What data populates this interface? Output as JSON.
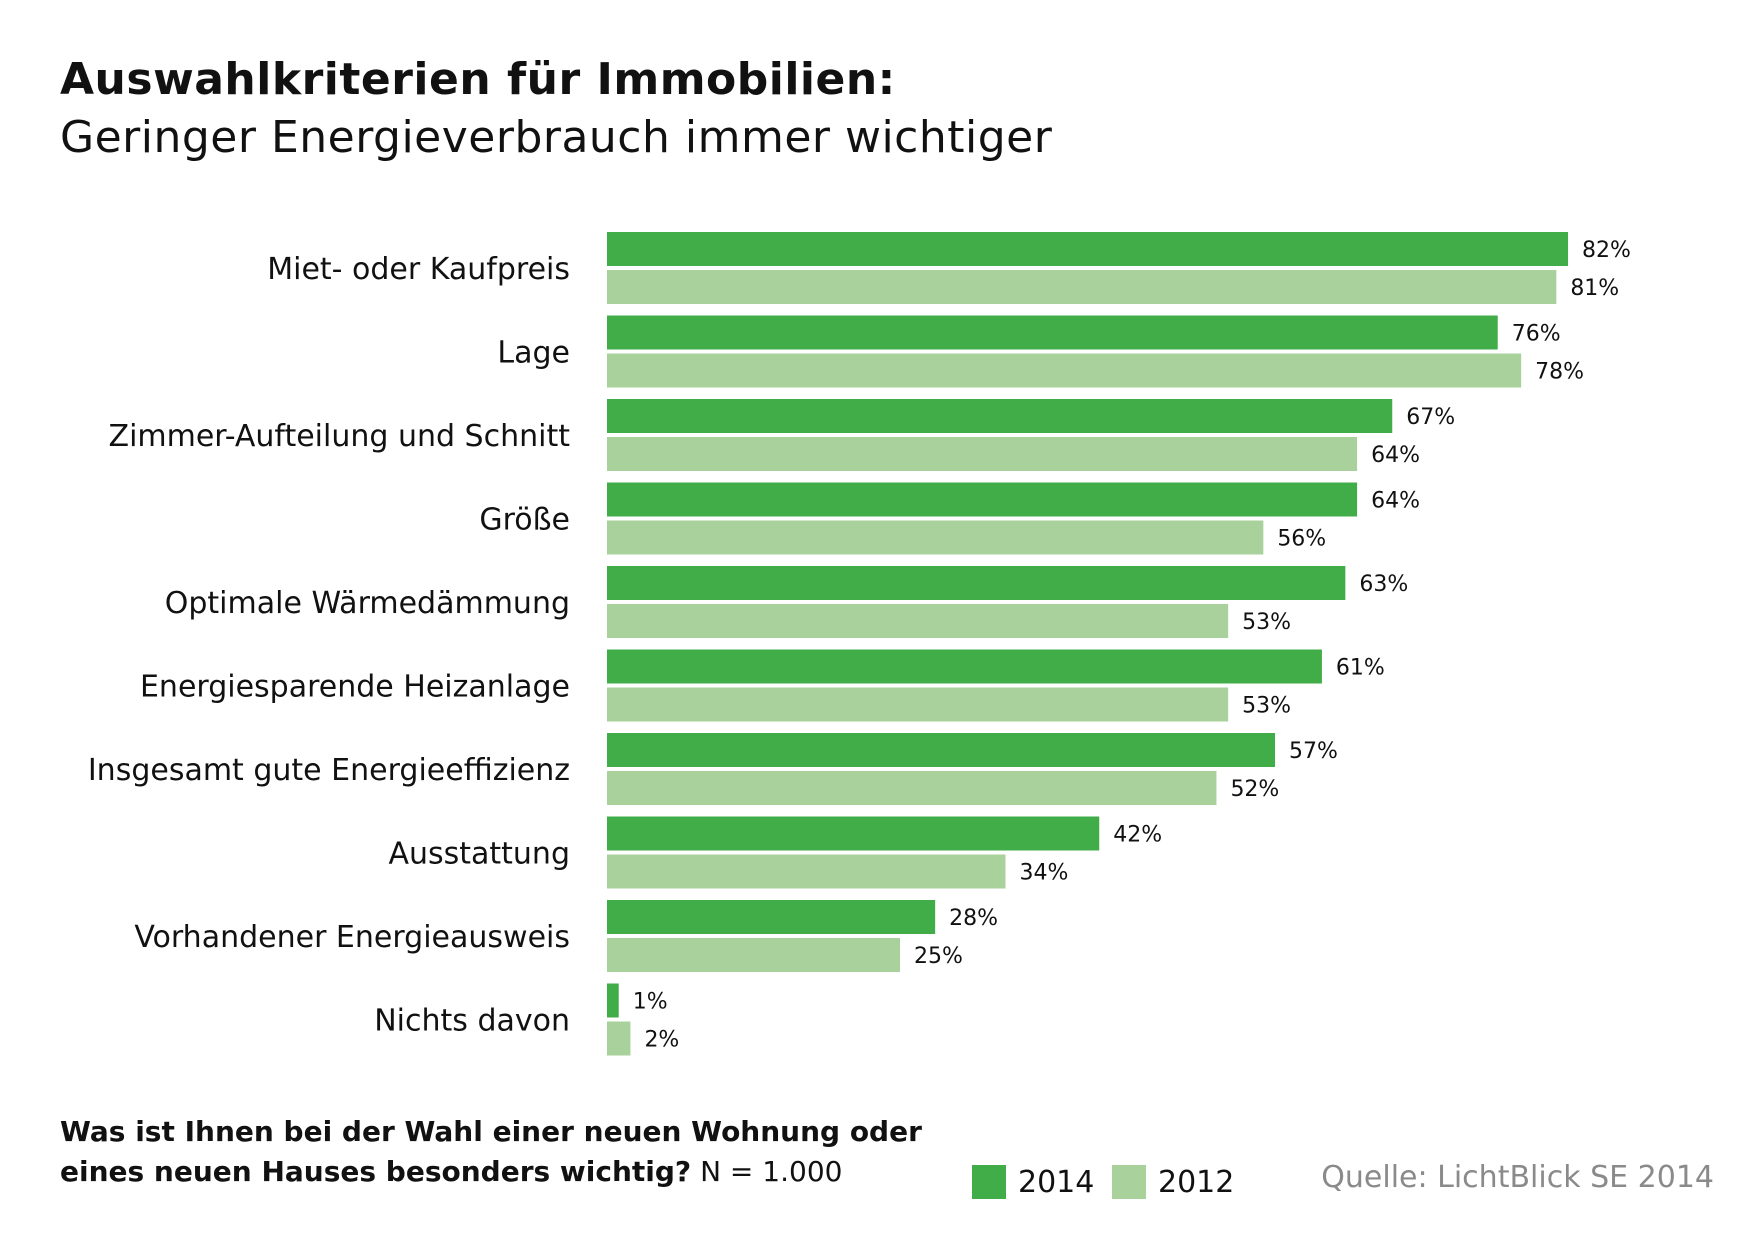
{
  "header": {
    "title": "Auswahlkriterien für Immobilien:",
    "subtitle": "Geringer Energieverbrauch immer wichtiger"
  },
  "footer": {
    "question_bold_line1": "Was ist Ihnen bei der Wahl einer neuen Wohnung oder",
    "question_bold_line2": "eines neuen Hauses besonders wichtig?",
    "question_n": " N = 1.000",
    "source": "Quelle: LichtBlick SE 2014"
  },
  "colors": {
    "series_2014": "#41ad49",
    "series_2012": "#a8d19b"
  },
  "chart_data": {
    "type": "bar",
    "orientation": "horizontal",
    "categories": [
      "Miet- oder Kaufpreis",
      "Lage",
      "Zimmer-Aufteilung und Schnitt",
      "Größe",
      "Optimale Wärmedämmung",
      "Energiesparende  Heizanlage",
      "Insgesamt gute Energieeffizienz",
      "Ausstattung",
      "Vorhandener Energieausweis",
      "Nichts davon"
    ],
    "series": [
      {
        "name": "2014",
        "values": [
          82,
          76,
          67,
          64,
          63,
          61,
          57,
          42,
          28,
          1
        ],
        "labels": [
          "82%",
          "76%",
          "67%",
          "64%",
          "63%",
          "61%",
          "57%",
          "42%",
          "28%",
          "1%"
        ]
      },
      {
        "name": "2012",
        "values": [
          81,
          78,
          64,
          56,
          53,
          53,
          52,
          34,
          25,
          2
        ],
        "labels": [
          "81%",
          "78%",
          "64%",
          "56%",
          "53%",
          "53%",
          "52%",
          "34%",
          "25%",
          "2%"
        ]
      }
    ],
    "unit": "%",
    "xlim": [
      0,
      100
    ],
    "grid": false,
    "legend": "bottom"
  }
}
